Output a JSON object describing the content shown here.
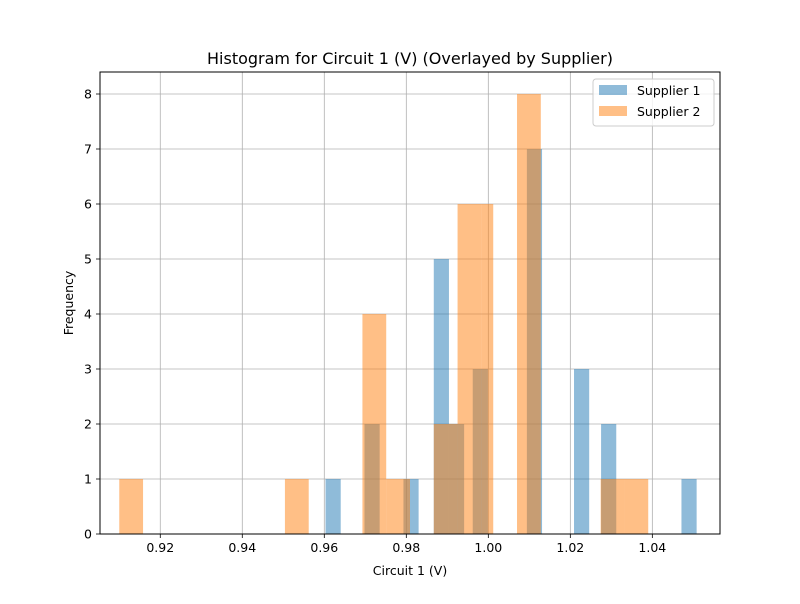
{
  "chart_data": {
    "type": "bar",
    "title": "Histogram for Circuit 1 (V) (Overlayed by Supplier)",
    "xlabel": "Circuit 1 (V)",
    "ylabel": "Frequency",
    "xlim": [
      0.9053,
      1.0565
    ],
    "ylim": [
      0,
      8.4
    ],
    "x_ticks": [
      "0.92",
      "0.94",
      "0.96",
      "0.98",
      "1.00",
      "1.02",
      "1.04"
    ],
    "y_ticks": [
      "0",
      "1",
      "2",
      "3",
      "4",
      "5",
      "6",
      "7",
      "8"
    ],
    "grid": true,
    "legend_position": "top-right",
    "series": [
      {
        "name": "Supplier 1",
        "color": "#1f77b4",
        "bins": [
          {
            "x0": 0.9603,
            "x1": 0.964,
            "count": 1
          },
          {
            "x0": 0.9698,
            "x1": 0.9735,
            "count": 2
          },
          {
            "x0": 0.9793,
            "x1": 0.983,
            "count": 1
          },
          {
            "x0": 0.9867,
            "x1": 0.9904,
            "count": 5
          },
          {
            "x0": 0.9904,
            "x1": 0.9941,
            "count": 2
          },
          {
            "x0": 0.9962,
            "x1": 0.9999,
            "count": 3
          },
          {
            "x0": 1.0094,
            "x1": 1.0131,
            "count": 7
          },
          {
            "x0": 1.0209,
            "x1": 1.0246,
            "count": 3
          },
          {
            "x0": 1.0275,
            "x1": 1.0312,
            "count": 2
          },
          {
            "x0": 1.0471,
            "x1": 1.0508,
            "count": 1
          }
        ]
      },
      {
        "name": "Supplier 2",
        "color": "#ff7f0e",
        "bins": [
          {
            "x0": 0.91,
            "x1": 0.9158,
            "count": 1
          },
          {
            "x0": 0.9504,
            "x1": 0.9562,
            "count": 1
          },
          {
            "x0": 0.9693,
            "x1": 0.9751,
            "count": 4
          },
          {
            "x0": 0.9751,
            "x1": 0.9809,
            "count": 1
          },
          {
            "x0": 0.9867,
            "x1": 0.9925,
            "count": 2
          },
          {
            "x0": 0.9925,
            "x1": 0.9983,
            "count": 6
          },
          {
            "x0": 0.9983,
            "x1": 1.0012,
            "count": 6
          },
          {
            "x0": 1.007,
            "x1": 1.0128,
            "count": 8
          },
          {
            "x0": 1.0274,
            "x1": 1.0332,
            "count": 1
          },
          {
            "x0": 1.0332,
            "x1": 1.039,
            "count": 1
          }
        ]
      }
    ]
  }
}
